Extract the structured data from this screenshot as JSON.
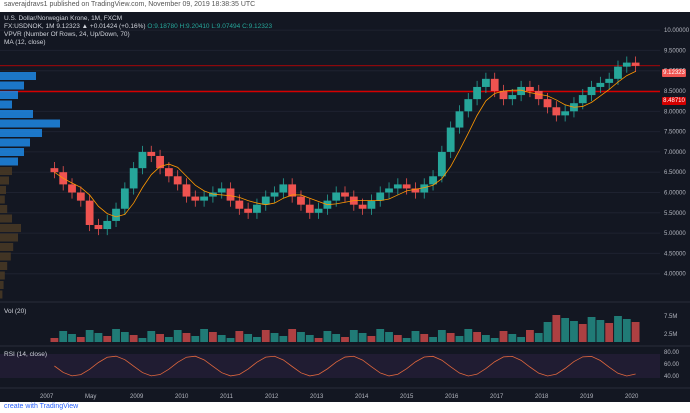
{
  "header": {
    "publish_line": "saverajdravs1 published on TradingView.com, November 09, 2019 18:38:35 UTC"
  },
  "main": {
    "symbol_line": "U.S. Dollar/Norwegian Krone, 1M, FXCM",
    "ohlc": {
      "prefix": "FX:USDNOK, 1M 9.12323 ▲ +0.01424 (+0.16%)",
      "o": "O:9.18780",
      "h": "H:9.20410",
      "l": "L:9.07494",
      "c": "C:9.12323"
    },
    "indicator_vpvr": "VPVR (Number Of Rows, 24, Up/Down, 70)",
    "indicator_ma": "MA (12, close)",
    "vol_label": "Vol (20)",
    "rsi_label": "RSI (14, close)",
    "price_tag_current": "9.12323",
    "price_tag_line": "8.48710"
  },
  "footer": {
    "logo": "create with TradingView"
  },
  "colors": {
    "bull": "#26a69a",
    "bear": "#ef5350",
    "bg": "#131722",
    "ma": "#ff9800",
    "rsi": "#e0673d",
    "hline": "#d50000"
  },
  "chart_data": {
    "type": "candlestick",
    "title": "U.S. Dollar/Norwegian Krone, 1M, FXCM",
    "ylim": [
      3.5,
      10.2
    ],
    "y_ticks": [
      "10.00000",
      "9.50000",
      "9.00000",
      "8.50000",
      "8.00000",
      "7.50000",
      "7.00000",
      "6.50000",
      "6.00000",
      "5.50000",
      "5.00000",
      "4.50000",
      "4.00000"
    ],
    "x_ticks": [
      "2007",
      "May",
      "2009",
      "2010",
      "2011",
      "2012",
      "2013",
      "2014",
      "2015",
      "2016",
      "2017",
      "2018",
      "2019",
      "2020"
    ],
    "vol_ticks": [
      "7.5M",
      "2.5M"
    ],
    "rsi_ticks": [
      "80.00",
      "60.00",
      "40.00"
    ],
    "close_levels": [
      6.5,
      6.2,
      6.0,
      5.8,
      5.2,
      5.1,
      5.3,
      5.6,
      6.1,
      6.6,
      7.0,
      6.9,
      6.6,
      6.4,
      6.2,
      5.9,
      5.8,
      5.9,
      6.0,
      6.1,
      5.8,
      5.6,
      5.5,
      5.7,
      5.9,
      6.0,
      6.2,
      5.9,
      5.7,
      5.5,
      5.6,
      5.8,
      6.0,
      5.9,
      5.7,
      5.6,
      5.8,
      6.0,
      6.1,
      6.2,
      6.1,
      6.0,
      6.2,
      6.4,
      7.0,
      7.6,
      8.0,
      8.3,
      8.6,
      8.8,
      8.5,
      8.3,
      8.4,
      8.6,
      8.5,
      8.3,
      8.1,
      7.9,
      8.0,
      8.2,
      8.4,
      8.6,
      8.7,
      8.8,
      9.1,
      9.2,
      9.12
    ],
    "line_levels": [
      9.12323,
      8.4871
    ]
  }
}
